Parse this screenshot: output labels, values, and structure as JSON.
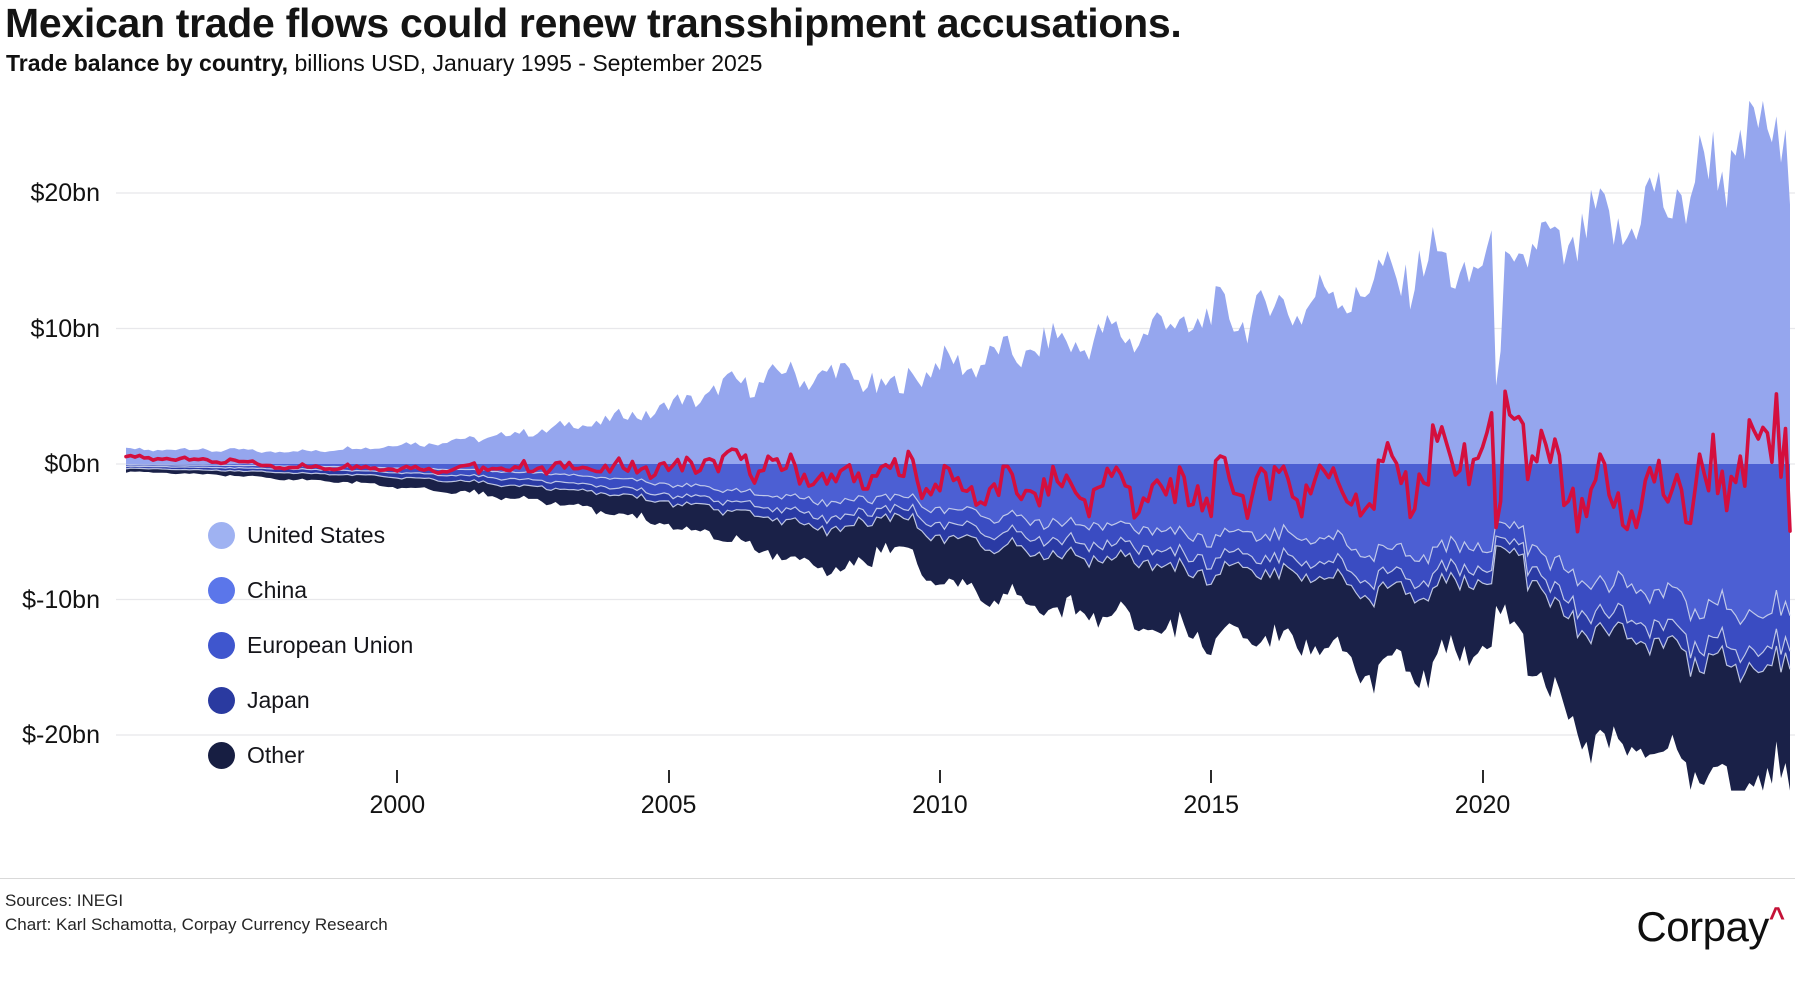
{
  "header": {
    "title": "Mexican trade flows could renew transshipment accusations.",
    "subtitle_bold": "Trade balance by country,",
    "subtitle_rest": " billions USD, January 1995 - September 2025"
  },
  "chart_data": {
    "type": "area",
    "stacked": true,
    "title": "Trade balance by country",
    "unit": "billions USD",
    "x_range": {
      "start": "1995-01",
      "end": "2025-09"
    },
    "ylim": [
      -24.5,
      27
    ],
    "grid": "horizontal",
    "legend_position": "overlay-left",
    "y_axis": {
      "ticks": [
        {
          "value": 20,
          "label": "$20bn"
        },
        {
          "value": 10,
          "label": "$10bn"
        },
        {
          "value": 0,
          "label": "$0bn"
        },
        {
          "value": -10,
          "label": "$-10bn"
        },
        {
          "value": -20,
          "label": "$-20bn"
        }
      ]
    },
    "x_axis": {
      "ticks": [
        {
          "year": 2000,
          "label": "2000"
        },
        {
          "year": 2005,
          "label": "2005"
        },
        {
          "year": 2010,
          "label": "2010"
        },
        {
          "year": 2015,
          "label": "2015"
        },
        {
          "year": 2020,
          "label": "2020"
        }
      ]
    },
    "anchor_years_start": 1995,
    "series": [
      {
        "name": "United States",
        "sign": 1,
        "area_color": "#95a6ee",
        "legend_color": "#9fb2f2",
        "anchors": [
          1.0,
          1.1,
          1.0,
          0.9,
          1.1,
          1.4,
          1.7,
          2.1,
          2.7,
          3.3,
          4.2,
          5.6,
          6.5,
          6.6,
          6.2,
          7.2,
          7.8,
          8.8,
          9.3,
          10.0,
          10.8,
          11.3,
          12.2,
          13.2,
          14.8,
          14.2,
          15.5,
          17.0,
          18.5,
          21.0,
          24.0
        ],
        "noise": {
          "seasonal_amp": 0.085,
          "seasonal_phase": 0.9,
          "random_amp": 0.13,
          "seed": 12.9898
        }
      },
      {
        "name": "China",
        "sign": -1,
        "area_color": "#4c5fd3",
        "legend_color": "#5b76ea",
        "anchors": [
          0.05,
          0.07,
          0.1,
          0.15,
          0.2,
          0.3,
          0.4,
          0.55,
          0.75,
          1.1,
          1.5,
          1.9,
          2.4,
          2.8,
          2.7,
          3.3,
          3.8,
          4.3,
          4.5,
          4.9,
          5.4,
          5.2,
          5.5,
          6.3,
          6.5,
          6.0,
          7.3,
          8.8,
          9.5,
          10.2,
          10.8
        ],
        "noise": {
          "seasonal_amp": 0.06,
          "seasonal_phase": 2.1,
          "random_amp": 0.1,
          "seed": 78.233
        }
      },
      {
        "name": "European Union",
        "sign": -1,
        "area_color": "#3a4cc2",
        "legend_color": "#3f56ce",
        "anchors": [
          0.12,
          0.15,
          0.18,
          0.22,
          0.27,
          0.35,
          0.42,
          0.5,
          0.58,
          0.66,
          0.75,
          0.85,
          0.95,
          1.1,
          0.95,
          1.1,
          1.2,
          1.3,
          1.4,
          1.5,
          1.6,
          1.6,
          1.7,
          1.8,
          1.8,
          1.5,
          1.9,
          2.2,
          2.4,
          2.6,
          2.7
        ],
        "noise": {
          "seasonal_amp": 0.05,
          "seasonal_phase": 2.6,
          "random_amp": 0.13,
          "seed": 37.719
        }
      },
      {
        "name": "Japan",
        "sign": -1,
        "area_color": "#2a3aa4",
        "legend_color": "#2a3aa0",
        "anchors": [
          0.15,
          0.18,
          0.22,
          0.26,
          0.3,
          0.35,
          0.4,
          0.45,
          0.5,
          0.52,
          0.55,
          0.65,
          0.75,
          0.85,
          0.75,
          0.95,
          1.0,
          1.05,
          1.05,
          1.1,
          1.1,
          1.05,
          1.1,
          1.15,
          1.1,
          0.95,
          1.15,
          1.3,
          1.3,
          1.3,
          1.3
        ],
        "noise": {
          "seasonal_amp": 0.05,
          "seasonal_phase": 1.6,
          "random_amp": 0.13,
          "seed": 93.989
        }
      },
      {
        "name": "Other",
        "sign": -1,
        "area_color": "#1a2148",
        "legend_color": "#171e42",
        "anchors": [
          0.25,
          0.3,
          0.35,
          0.5,
          0.55,
          0.7,
          0.8,
          0.9,
          1.1,
          1.4,
          1.7,
          2.1,
          2.6,
          3.1,
          2.6,
          3.2,
          3.7,
          4.0,
          4.3,
          4.6,
          4.9,
          4.7,
          5.2,
          5.8,
          5.6,
          5.0,
          6.3,
          8.0,
          7.8,
          8.6,
          8.4
        ],
        "noise": {
          "seasonal_amp": 0.06,
          "seasonal_phase": 2.4,
          "random_amp": 0.12,
          "seed": 53.987
        }
      }
    ],
    "events": [
      {
        "series": "United States",
        "from": 303,
        "to": 303,
        "factor": 0.42
      },
      {
        "series": "United States",
        "from": 304,
        "to": 304,
        "factor": 0.62
      },
      {
        "series": "United States",
        "from": 166,
        "to": 172,
        "factor": 0.88
      },
      {
        "series": "China",
        "from": 303,
        "to": 309,
        "factor": 0.7
      },
      {
        "series": "China",
        "from": 310,
        "to": 314,
        "factor": 0.85
      },
      {
        "series": "China",
        "from": 166,
        "to": 174,
        "factor": 0.86
      },
      {
        "series": "European Union",
        "from": 303,
        "to": 309,
        "factor": 0.7
      },
      {
        "series": "European Union",
        "from": 310,
        "to": 314,
        "factor": 0.85
      },
      {
        "series": "European Union",
        "from": 166,
        "to": 174,
        "factor": 0.86
      },
      {
        "series": "Japan",
        "from": 303,
        "to": 309,
        "factor": 0.7
      },
      {
        "series": "Japan",
        "from": 310,
        "to": 314,
        "factor": 0.85
      },
      {
        "series": "Japan",
        "from": 166,
        "to": 174,
        "factor": 0.86
      },
      {
        "series": "Other",
        "from": 303,
        "to": 306,
        "factor": 0.88
      },
      {
        "series": "Other",
        "from": 166,
        "to": 174,
        "factor": 0.87
      },
      {
        "series": "Other",
        "from": 324,
        "to": 333,
        "factor": 1.1
      }
    ],
    "total_line": {
      "label": "Trade balance",
      "color": "#d40f3e"
    },
    "separator_color": "#ccd4ec",
    "gridline_color": "#e8e8eb"
  },
  "footer": {
    "sources": "Sources: INEGI",
    "credit": "Chart: Karl Schamotta, Corpay Currency Research",
    "logo_text": "Corpay",
    "logo_caret": "^"
  }
}
